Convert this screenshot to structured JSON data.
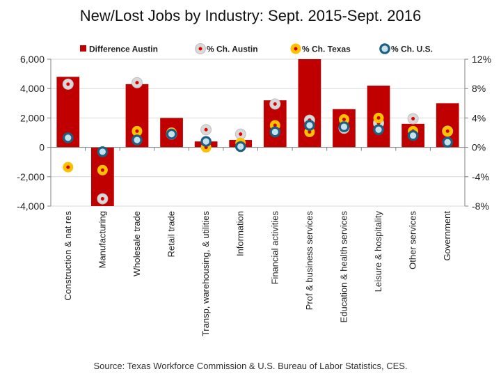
{
  "chart_data": {
    "type": "bar",
    "title": "New/Lost Jobs by Industry: Sept. 2015-Sept. 2016",
    "source": "Source: Texas Workforce Commission & U.S. Bureau of Labor Statistics, CES.",
    "categories": [
      "Construction & nat res",
      "Manufacturing",
      "Wholesale trade",
      "Retail trade",
      "Transp, warehousing, & utilities",
      "Information",
      "Financial activities",
      "Prof & business services",
      "Education & health services",
      "Leisure & hospitality",
      "Other services",
      "Government"
    ],
    "bar_series": {
      "name": "Difference Austin",
      "color": "#c00000",
      "values": [
        4800,
        -4000,
        4300,
        2000,
        400,
        500,
        3200,
        6000,
        2600,
        4200,
        1600,
        3000
      ]
    },
    "point_series": [
      {
        "name": "% Ch. Austin",
        "marker": "gray-ring-red-dot",
        "values": [
          8.6,
          -7.0,
          8.8,
          1.8,
          2.4,
          1.8,
          5.9,
          3.7,
          2.6,
          3.3,
          3.9,
          2.2
        ]
      },
      {
        "name": "% Ch. Texas",
        "marker": "yellow-ring-red-dot",
        "values": [
          -2.7,
          -3.1,
          2.2,
          2.0,
          0.0,
          0.6,
          3.0,
          2.1,
          3.8,
          4.0,
          2.2,
          2.2
        ]
      },
      {
        "name": "% Ch. U.S.",
        "marker": "blue-ring",
        "values": [
          1.3,
          -0.6,
          1.0,
          1.8,
          0.8,
          0.1,
          2.1,
          3.0,
          2.8,
          2.4,
          1.6,
          0.7
        ]
      }
    ],
    "y_left": {
      "min": -4000,
      "max": 6000,
      "ticks": [
        "-4,000",
        "-2,000",
        "0",
        "2,000",
        "4,000",
        "6,000"
      ]
    },
    "y_right": {
      "min": -8,
      "max": 12,
      "ticks": [
        "-8%",
        "-4%",
        "0%",
        "4%",
        "8%",
        "12%"
      ]
    },
    "grid": true,
    "legend_position": "top"
  }
}
